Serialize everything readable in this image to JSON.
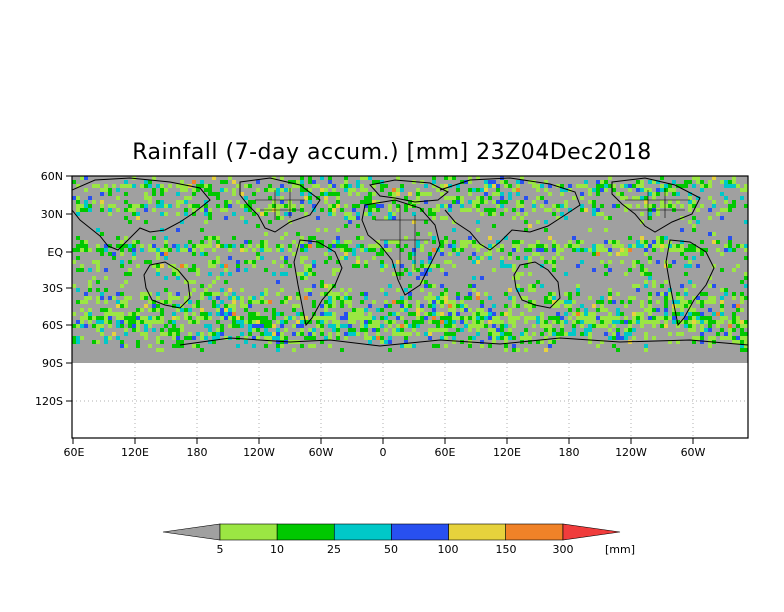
{
  "title": "Rainfall (7-day accum.) [mm] 23Z04Dec2018",
  "y_axis": {
    "tick_labels": [
      "60N",
      "30N",
      "EQ",
      "30S",
      "60S",
      "90S",
      "120S"
    ]
  },
  "x_axis": {
    "tick_labels": [
      "60E",
      "120E",
      "180",
      "120W",
      "60W",
      "0",
      "60E",
      "120E",
      "180",
      "120W",
      "60W"
    ]
  },
  "colorbar": {
    "unit": "[mm]",
    "thresholds": [
      "5",
      "10",
      "25",
      "50",
      "100",
      "150",
      "300"
    ],
    "colors": [
      "#a0a0a0",
      "#9be643",
      "#00c800",
      "#00c8c8",
      "#2850f0",
      "#e6d23c",
      "#f08228",
      "#f03c3c"
    ]
  },
  "map_colors": {
    "no_rain": "#a0a0a0",
    "below_data": "#ffffff",
    "coastline": "#000000"
  }
}
